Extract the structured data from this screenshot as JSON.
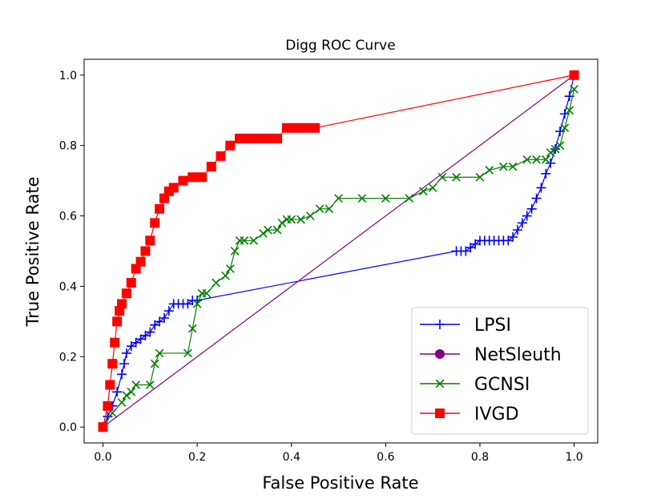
{
  "chart_data": {
    "type": "line",
    "title": "Digg ROC Curve",
    "xlabel": "False Positive Rate",
    "ylabel": "True Positive Rate",
    "xlim": [
      -0.04,
      1.05
    ],
    "ylim": [
      -0.045,
      1.045
    ],
    "x_ticks": [
      "0.0",
      "0.2",
      "0.4",
      "0.6",
      "0.8",
      "1.0"
    ],
    "y_ticks": [
      "0.0",
      "0.2",
      "0.4",
      "0.6",
      "0.8",
      "1.0"
    ],
    "legend_position": "lower-right",
    "series": [
      {
        "name": "LPSI",
        "color": "#0000ff",
        "marker": "plus",
        "x": [
          0.0,
          0.01,
          0.02,
          0.03,
          0.04,
          0.045,
          0.05,
          0.06,
          0.07,
          0.08,
          0.09,
          0.1,
          0.11,
          0.12,
          0.13,
          0.14,
          0.15,
          0.16,
          0.17,
          0.18,
          0.19,
          0.2,
          0.75,
          0.76,
          0.77,
          0.78,
          0.79,
          0.8,
          0.81,
          0.82,
          0.83,
          0.84,
          0.85,
          0.86,
          0.87,
          0.88,
          0.89,
          0.9,
          0.91,
          0.92,
          0.93,
          0.94,
          0.95,
          0.96,
          0.97,
          0.98,
          0.99,
          1.0
        ],
        "y": [
          0.0,
          0.03,
          0.06,
          0.1,
          0.15,
          0.18,
          0.21,
          0.23,
          0.24,
          0.25,
          0.26,
          0.27,
          0.29,
          0.3,
          0.31,
          0.33,
          0.35,
          0.35,
          0.35,
          0.35,
          0.36,
          0.36,
          0.5,
          0.5,
          0.5,
          0.51,
          0.52,
          0.53,
          0.53,
          0.53,
          0.53,
          0.53,
          0.53,
          0.53,
          0.54,
          0.56,
          0.58,
          0.6,
          0.62,
          0.65,
          0.68,
          0.72,
          0.75,
          0.79,
          0.84,
          0.89,
          0.94,
          1.0
        ]
      },
      {
        "name": "NetSleuth",
        "color": "#800080",
        "marker": "circle",
        "x": [
          0.0,
          1.0
        ],
        "y": [
          0.0,
          1.0
        ]
      },
      {
        "name": "GCNSI",
        "color": "#008000",
        "marker": "x",
        "x": [
          0.0,
          0.02,
          0.04,
          0.05,
          0.06,
          0.07,
          0.1,
          0.11,
          0.12,
          0.18,
          0.19,
          0.2,
          0.21,
          0.22,
          0.24,
          0.26,
          0.27,
          0.28,
          0.29,
          0.3,
          0.32,
          0.34,
          0.35,
          0.37,
          0.38,
          0.39,
          0.4,
          0.42,
          0.44,
          0.46,
          0.48,
          0.5,
          0.55,
          0.6,
          0.65,
          0.68,
          0.7,
          0.72,
          0.75,
          0.8,
          0.82,
          0.85,
          0.87,
          0.9,
          0.92,
          0.94,
          0.95,
          0.96,
          0.97,
          0.98,
          0.99,
          1.0
        ],
        "y": [
          0.0,
          0.04,
          0.07,
          0.09,
          0.1,
          0.12,
          0.12,
          0.18,
          0.21,
          0.21,
          0.28,
          0.35,
          0.38,
          0.38,
          0.41,
          0.43,
          0.45,
          0.5,
          0.53,
          0.53,
          0.53,
          0.55,
          0.56,
          0.56,
          0.58,
          0.59,
          0.59,
          0.59,
          0.6,
          0.62,
          0.62,
          0.65,
          0.65,
          0.65,
          0.65,
          0.67,
          0.68,
          0.71,
          0.71,
          0.71,
          0.73,
          0.74,
          0.74,
          0.76,
          0.76,
          0.76,
          0.78,
          0.79,
          0.8,
          0.85,
          0.9,
          0.96
        ]
      },
      {
        "name": "IVGD",
        "color": "#ff0000",
        "marker": "square",
        "x": [
          0.0,
          0.01,
          0.015,
          0.02,
          0.025,
          0.03,
          0.035,
          0.04,
          0.05,
          0.06,
          0.07,
          0.08,
          0.09,
          0.1,
          0.11,
          0.12,
          0.13,
          0.14,
          0.15,
          0.17,
          0.19,
          0.21,
          0.23,
          0.25,
          0.27,
          0.29,
          0.31,
          0.33,
          0.35,
          0.37,
          0.39,
          0.41,
          0.43,
          0.45,
          1.0
        ],
        "y": [
          0.0,
          0.06,
          0.12,
          0.18,
          0.24,
          0.3,
          0.33,
          0.35,
          0.38,
          0.41,
          0.45,
          0.47,
          0.5,
          0.53,
          0.58,
          0.62,
          0.65,
          0.67,
          0.68,
          0.7,
          0.71,
          0.71,
          0.74,
          0.77,
          0.8,
          0.82,
          0.82,
          0.82,
          0.82,
          0.82,
          0.85,
          0.85,
          0.85,
          0.85,
          1.0
        ]
      }
    ]
  }
}
